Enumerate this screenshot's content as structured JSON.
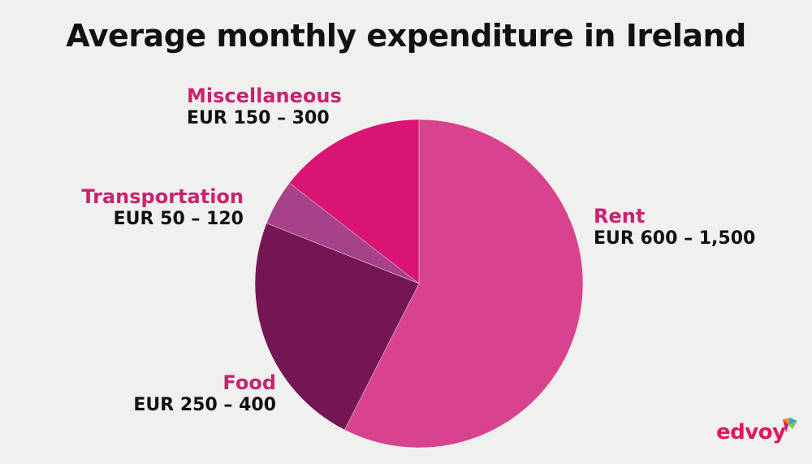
{
  "chart_data": {
    "type": "pie",
    "title": "Average monthly expenditure in Ireland",
    "slices": [
      {
        "category": "Rent",
        "range": "EUR 600 – 1,500",
        "share": 0.575,
        "color": "#d9428c"
      },
      {
        "category": "Food",
        "range": "EUR 250 – 400",
        "share": 0.235,
        "color": "#731653"
      },
      {
        "category": "Transportation",
        "range": "EUR 50 – 120",
        "share": 0.045,
        "color": "#a7418a"
      },
      {
        "category": "Miscellaneous",
        "range": "EUR 150 – 300",
        "share": 0.145,
        "color": "#d91472"
      }
    ],
    "label_color": "#c8236e"
  },
  "brand": {
    "name": "edvoy",
    "color": "#e1185a"
  }
}
